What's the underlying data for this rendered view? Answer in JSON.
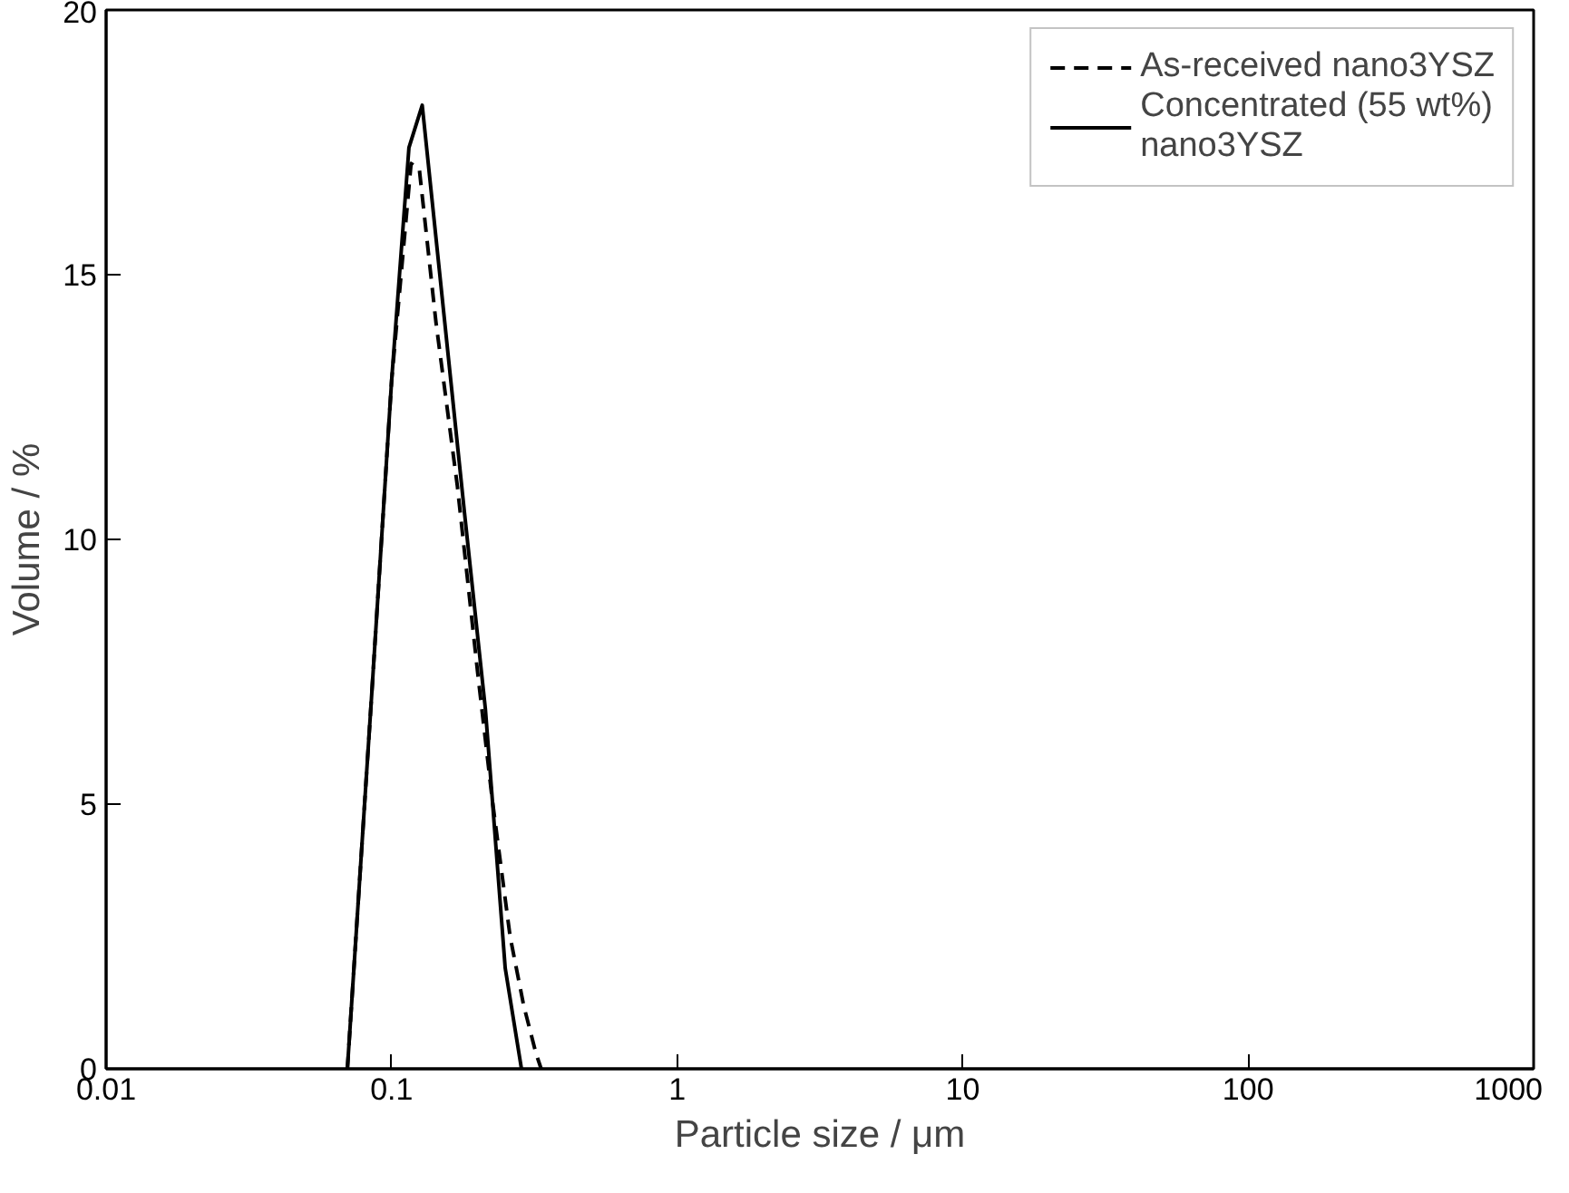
{
  "chart_data": {
    "type": "line",
    "xlabel": "Particle size / μm",
    "ylabel": "Volume / %",
    "log": "x",
    "xlim": [
      0.01,
      1000
    ],
    "xticks": [
      {
        "value": 0.01,
        "label": "0.01"
      },
      {
        "value": 0.1,
        "label": "0.1"
      },
      1,
      10,
      100,
      1000
    ],
    "ylim": [
      0,
      20
    ],
    "yticks": [
      0,
      5,
      10,
      15,
      20
    ],
    "grid": false,
    "legend": "top right",
    "series": [
      {
        "name": "As-received nano3YSZ",
        "color": "#000000",
        "line_style": "dashed",
        "x": [
          0.07,
          0.085,
          0.1,
          0.117,
          0.125,
          0.143,
          0.17,
          0.2,
          0.225,
          0.26,
          0.29,
          0.32,
          0.334
        ],
        "values": [
          0,
          7,
          13,
          17.1,
          17.0,
          14.1,
          11,
          7.5,
          5.1,
          2.5,
          1.2,
          0.3,
          0
        ]
      },
      {
        "name": "Concentrated (55 wt%)\nnano3YSZ",
        "color": "#000000",
        "line_style": "solid",
        "x": [
          0.07,
          0.085,
          0.1,
          0.115,
          0.128,
          0.1535,
          0.18,
          0.213,
          0.25,
          0.285
        ],
        "values": [
          0,
          7,
          13,
          17.4,
          18.2,
          14.1,
          10.5,
          6.8,
          1.9,
          0
        ]
      }
    ]
  }
}
